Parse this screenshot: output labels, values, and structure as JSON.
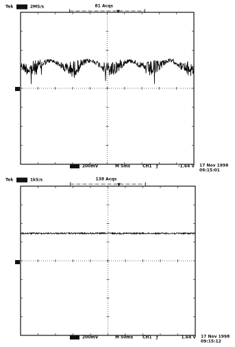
{
  "panels": [
    {
      "brand": "Tek",
      "rate": "2MS/s",
      "acqs": "81 Acqs",
      "ch_scale": "200mV",
      "timebase": "M 5ms",
      "trigger_source": "CH1",
      "trigger_slope": "ƒ",
      "trigger_level": "-1.64 V",
      "date": "17 Nov 1998",
      "time": "09:15:01"
    },
    {
      "brand": "Tek",
      "rate": "1kS/s",
      "acqs": "138 Acqs",
      "ch_scale": "200mV",
      "timebase": "M 50ms",
      "trigger_source": "CH1",
      "trigger_slope": "ƒ",
      "trigger_level": "1.64 V",
      "date": "17 Nov 1998",
      "time": "09:15:12"
    }
  ]
}
